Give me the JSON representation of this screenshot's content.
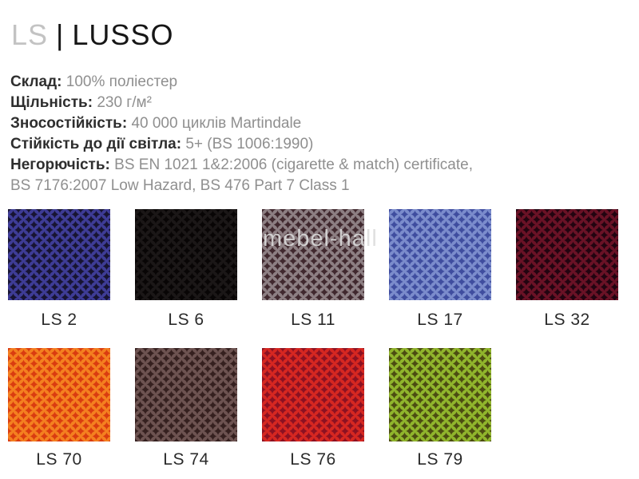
{
  "header": {
    "code": "LS",
    "separator": "|",
    "name": "LUSSO"
  },
  "specs": [
    {
      "label": "Склад:",
      "value": "100% поліестер"
    },
    {
      "label": "Щільність:",
      "value": "230 г/м²"
    },
    {
      "label": "Зносостійкість:",
      "value": "40 000 циклів Martindale"
    },
    {
      "label": "Стійкість до дії світла:",
      "value": "5+ (BS 1006:1990)"
    },
    {
      "label": "Негорючість:",
      "value": "BS EN 1021 1&2:2006 (cigarette & match) certificate,"
    },
    {
      "label": "",
      "value": "BS 7176:2007 Low Hazard, BS 476 Part 7 Class 1"
    }
  ],
  "watermark": "mebel-hall",
  "swatches": {
    "rows": [
      [
        {
          "label": "LS 2",
          "base_color": "#3e3c96",
          "pattern_color": "#171432"
        },
        {
          "label": "LS 6",
          "base_color": "#1b1717",
          "pattern_color": "#080505"
        },
        {
          "label": "LS 11",
          "base_color": "#8d7f83",
          "pattern_color": "#40282e"
        },
        {
          "label": "LS 17",
          "base_color": "#7b8ccc",
          "pattern_color": "#3f4d9f"
        },
        {
          "label": "LS 32",
          "base_color": "#6a1226",
          "pattern_color": "#220410"
        }
      ],
      [
        {
          "label": "LS 70",
          "base_color": "#f48020",
          "pattern_color": "#da3c10"
        },
        {
          "label": "LS 74",
          "base_color": "#6d5351",
          "pattern_color": "#35201f"
        },
        {
          "label": "LS 76",
          "base_color": "#d62721",
          "pattern_color": "#8c1122"
        },
        {
          "label": "LS 79",
          "base_color": "#90b52c",
          "pattern_color": "#4c4c12"
        }
      ]
    ]
  }
}
